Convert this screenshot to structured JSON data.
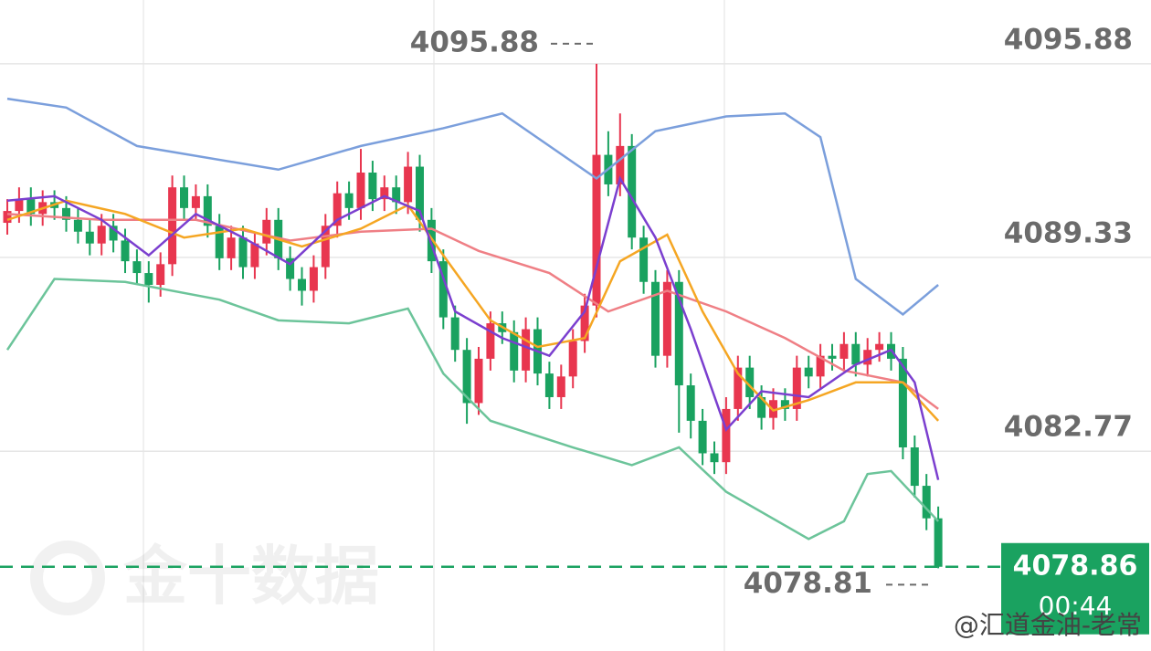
{
  "chart_data": {
    "type": "candlestick",
    "open": [
      4090.5,
      4090.9,
      4091.3,
      4090.8,
      4091.2,
      4091.0,
      4090.6,
      4090.2,
      4089.8,
      4090.4,
      4089.9,
      4089.2,
      4088.8,
      4088.4,
      4089.1,
      4091.7,
      4091.0,
      4091.4,
      4090.4,
      4089.3,
      4090.0,
      4089.0,
      4089.8,
      4090.6,
      4089.3,
      4088.6,
      4088.2,
      4089.0,
      4090.4,
      4091.5,
      4091.0,
      4092.2,
      4091.3,
      4091.7,
      4091.2,
      4092.4,
      4090.6,
      4089.2,
      4087.3,
      4086.2,
      4084.4,
      4085.9,
      4087.1,
      4086.8,
      4085.5,
      4086.9,
      4085.4,
      4084.6,
      4085.3,
      4086.5,
      4087.7,
      4092.8,
      4091.8,
      4093.1,
      4090.0,
      4088.5,
      4086.0,
      4088.5,
      4085.0,
      4083.8,
      4082.7,
      4082.4,
      4084.2,
      4085.6,
      4084.6,
      4083.9,
      4084.5,
      4084.2,
      4085.6,
      4085.3,
      4086.0,
      4085.9,
      4086.4,
      4085.7,
      4086.2,
      4086.4,
      4085.9,
      4082.9,
      4081.6,
      4080.5
    ],
    "high": [
      4091.3,
      4091.7,
      4091.7,
      4091.6,
      4091.6,
      4091.4,
      4091.0,
      4090.6,
      4090.8,
      4090.8,
      4090.3,
      4089.6,
      4089.2,
      4089.5,
      4092.1,
      4092.1,
      4091.8,
      4091.8,
      4090.8,
      4090.4,
      4090.4,
      4090.2,
      4091.0,
      4091.0,
      4089.7,
      4089.0,
      4089.4,
      4090.8,
      4091.9,
      4091.9,
      4093.0,
      4092.6,
      4092.1,
      4092.1,
      4092.9,
      4092.8,
      4091.0,
      4089.6,
      4087.7,
      4086.6,
      4086.3,
      4087.5,
      4087.5,
      4087.2,
      4087.3,
      4087.3,
      4085.8,
      4085.7,
      4086.9,
      4088.1,
      4095.88,
      4093.6,
      4094.2,
      4093.5,
      4090.4,
      4088.9,
      4088.9,
      4088.9,
      4085.4,
      4084.2,
      4083.1,
      4084.6,
      4086.0,
      4086.0,
      4085.0,
      4084.9,
      4084.9,
      4086.0,
      4086.0,
      4086.4,
      4086.4,
      4086.8,
      4086.8,
      4086.6,
      4086.8,
      4086.8,
      4086.3,
      4083.3,
      4082.0,
      4080.9
    ],
    "low": [
      4090.1,
      4090.5,
      4090.4,
      4090.4,
      4090.6,
      4090.2,
      4089.8,
      4089.4,
      4089.4,
      4089.5,
      4088.8,
      4088.4,
      4087.8,
      4088.0,
      4088.7,
      4090.6,
      4090.6,
      4090.0,
      4088.9,
      4088.9,
      4088.6,
      4088.6,
      4089.4,
      4088.9,
      4088.2,
      4087.7,
      4087.8,
      4088.6,
      4090.0,
      4090.6,
      4090.6,
      4090.9,
      4090.9,
      4090.8,
      4090.8,
      4090.2,
      4088.8,
      4086.9,
      4085.8,
      4083.7,
      4084.0,
      4085.5,
      4086.4,
      4085.1,
      4085.1,
      4085.0,
      4084.2,
      4084.2,
      4084.9,
      4086.1,
      4087.3,
      4091.4,
      4091.4,
      4089.6,
      4088.1,
      4085.6,
      4085.6,
      4083.4,
      4083.2,
      4082.3,
      4082.0,
      4082.0,
      4083.8,
      4084.2,
      4083.5,
      4083.5,
      4083.8,
      4083.8,
      4084.9,
      4084.9,
      4085.5,
      4085.5,
      4085.3,
      4085.3,
      4085.8,
      4085.5,
      4082.5,
      4081.2,
      4080.1,
      4078.81
    ],
    "close": [
      4090.9,
      4091.3,
      4090.8,
      4091.2,
      4091.0,
      4090.6,
      4090.2,
      4089.8,
      4090.4,
      4089.9,
      4089.2,
      4088.8,
      4088.4,
      4089.1,
      4091.7,
      4091.0,
      4091.4,
      4090.4,
      4089.3,
      4090.0,
      4089.0,
      4089.8,
      4090.6,
      4089.3,
      4088.6,
      4088.2,
      4089.0,
      4090.4,
      4091.5,
      4091.0,
      4092.2,
      4091.3,
      4091.7,
      4091.2,
      4092.4,
      4090.6,
      4089.2,
      4087.3,
      4086.2,
      4084.4,
      4085.9,
      4087.1,
      4086.8,
      4085.5,
      4086.9,
      4085.4,
      4084.6,
      4085.3,
      4086.5,
      4087.7,
      4092.8,
      4091.8,
      4093.1,
      4090.0,
      4088.5,
      4086.0,
      4088.5,
      4085.0,
      4083.8,
      4082.7,
      4082.4,
      4084.2,
      4085.6,
      4084.6,
      4083.9,
      4084.5,
      4084.2,
      4085.6,
      4085.3,
      4086.0,
      4085.9,
      4086.4,
      4085.7,
      4086.2,
      4086.4,
      4085.9,
      4082.9,
      4081.6,
      4080.5,
      4078.86
    ],
    "up_color": "#e8364f",
    "down_color": "#1aa260",
    "lines": [
      {
        "color": "#7b9fdc",
        "x": [
          0,
          5,
          11,
          23,
          30,
          37,
          42,
          50,
          55,
          61,
          66,
          69,
          72,
          76,
          79
        ],
        "values": [
          4094.7,
          4094.4,
          4093.1,
          4092.3,
          4093.1,
          4093.7,
          4094.2,
          4092.0,
          4093.6,
          4094.1,
          4094.2,
          4093.4,
          4088.6,
          4087.4,
          4088.4
        ]
      },
      {
        "color": "#6cc49a",
        "x": [
          0,
          4,
          10,
          18,
          23,
          29,
          34,
          37,
          41,
          48,
          53,
          57,
          61,
          68,
          71,
          73,
          75,
          79
        ],
        "values": [
          4086.2,
          4088.6,
          4088.5,
          4087.9,
          4087.2,
          4087.1,
          4087.6,
          4085.4,
          4083.8,
          4082.9,
          4082.3,
          4082.9,
          4081.4,
          4079.8,
          4080.4,
          4082.0,
          4082.1,
          4080.4
        ]
      },
      {
        "color": "#ef7f85",
        "x": [
          0,
          8,
          16,
          24,
          30,
          36,
          40,
          46,
          51,
          56,
          61,
          66,
          71,
          76,
          79
        ],
        "values": [
          4090.8,
          4090.6,
          4090.6,
          4089.9,
          4090.2,
          4090.3,
          4089.55,
          4088.8,
          4087.5,
          4088.2,
          4087.5,
          4086.6,
          4085.5,
          4085.1,
          4084.2
        ]
      },
      {
        "color": "#f5a623",
        "x": [
          0,
          5,
          10,
          15,
          20,
          25,
          30,
          34,
          37,
          41,
          45,
          49,
          52,
          56,
          59,
          62,
          65,
          68,
          72,
          76,
          79
        ],
        "values": [
          4090.6,
          4091.25,
          4090.8,
          4090.0,
          4090.3,
          4089.7,
          4090.3,
          4091.1,
          4089.4,
          4087.2,
          4086.3,
          4086.6,
          4089.2,
          4090.1,
          4087.5,
          4085.4,
          4084.15,
          4084.5,
          4085.1,
          4085.1,
          4083.8
        ]
      },
      {
        "color": "#7b3fcf",
        "x": [
          0,
          4,
          8,
          12,
          16,
          20,
          24,
          28,
          32,
          35,
          38,
          42,
          46,
          49,
          52,
          55,
          58,
          61,
          64,
          68,
          72,
          75,
          77,
          79
        ],
        "values": [
          4091.25,
          4091.4,
          4090.6,
          4089.4,
          4090.8,
          4090.0,
          4089.1,
          4090.6,
          4091.4,
          4090.9,
          4087.5,
          4086.6,
          4086.0,
          4087.5,
          4092.0,
          4090.0,
          4086.9,
          4083.5,
          4084.8,
          4084.6,
          4085.7,
          4086.2,
          4085.1,
          4081.8
        ]
      }
    ],
    "ylim": [
      4076.01,
      4098.04
    ],
    "yticks": [
      4095.88,
      4089.33,
      4082.77
    ],
    "grid": true,
    "countdown": "00:44",
    "watermark": "金十数据",
    "source": "@汇道金油-老常"
  }
}
